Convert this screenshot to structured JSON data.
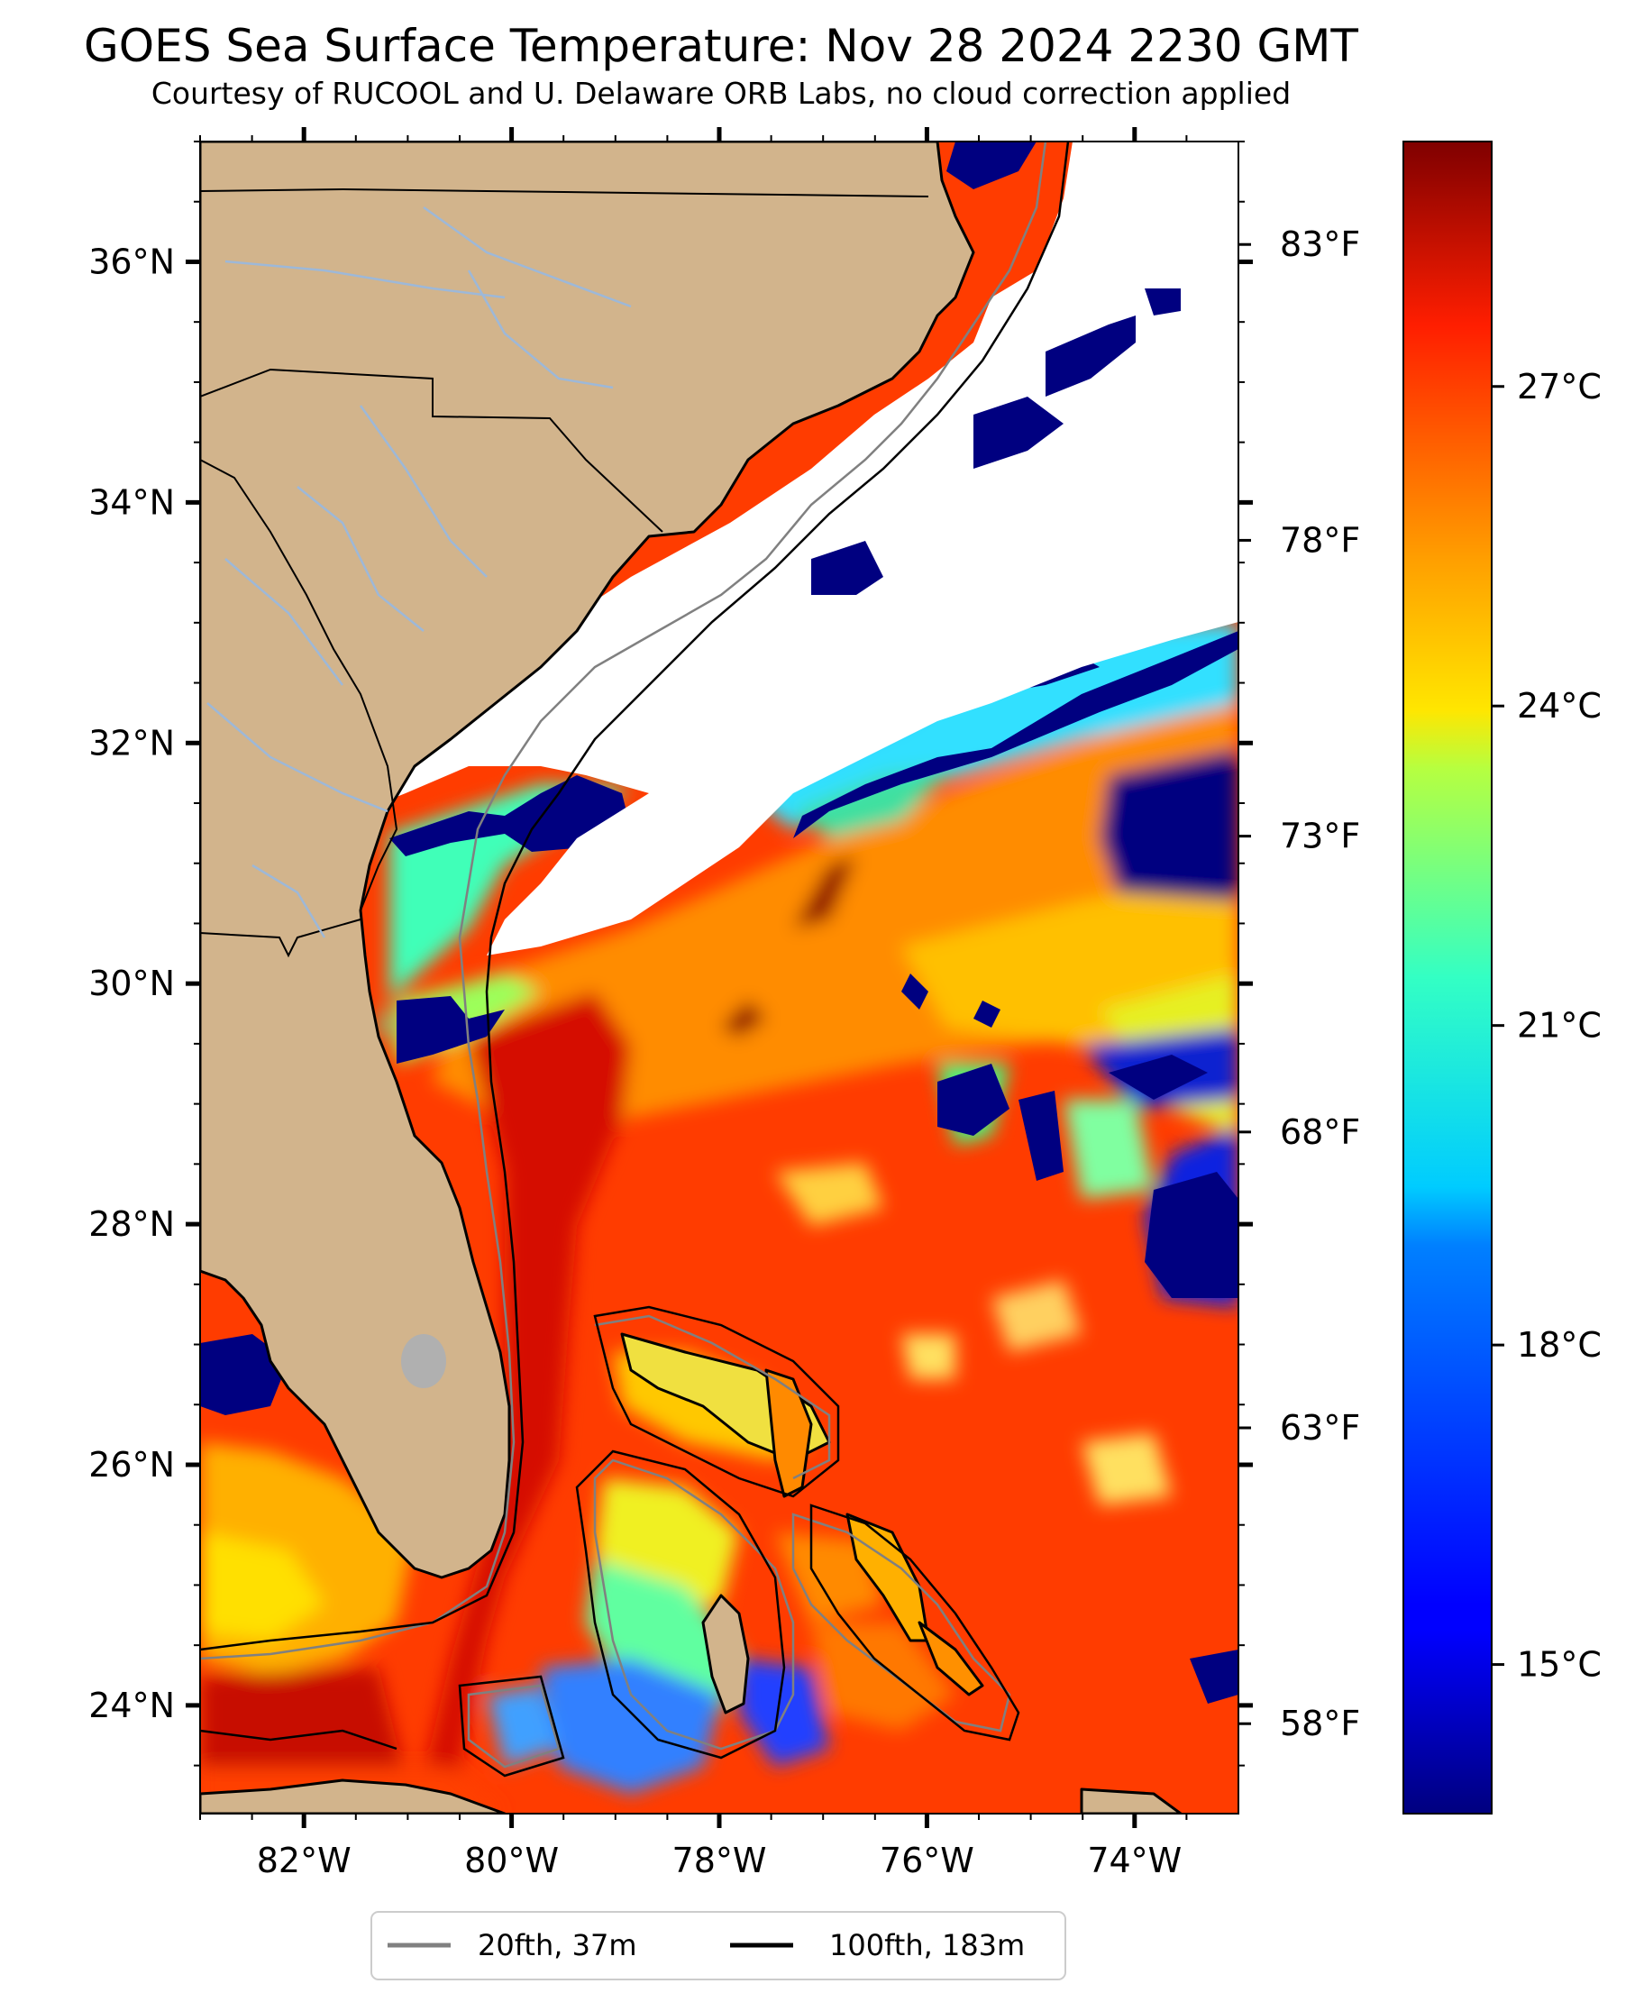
{
  "title": "GOES Sea Surface Temperature: Nov 28 2024 2230 GMT",
  "subtitle": "Courtesy of RUCOOL and U. Delaware ORB Labs, no cloud correction applied",
  "map": {
    "lon_range": [
      -83,
      -73
    ],
    "lat_range": [
      23.1,
      37
    ],
    "lon_ticks": [
      {
        "value": -82,
        "label": "82°W"
      },
      {
        "value": -80,
        "label": "80°W"
      },
      {
        "value": -78,
        "label": "78°W"
      },
      {
        "value": -76,
        "label": "76°W"
      },
      {
        "value": -74,
        "label": "74°W"
      }
    ],
    "lat_ticks": [
      {
        "value": 24,
        "label": "24°N"
      },
      {
        "value": 26,
        "label": "26°N"
      },
      {
        "value": 28,
        "label": "28°N"
      },
      {
        "value": 30,
        "label": "30°N"
      },
      {
        "value": 32,
        "label": "32°N"
      },
      {
        "value": 34,
        "label": "34°N"
      },
      {
        "value": 36,
        "label": "36°N"
      }
    ],
    "colors": {
      "land": "#d2b48c",
      "cloud": "#ffffff",
      "cold_mask": "#000080",
      "rivers": "#9db8d8",
      "isobath_20": "#808080",
      "isobath_100": "#000000"
    }
  },
  "colorbar": {
    "range_c": [
      13.6,
      29.3
    ],
    "celsius_ticks": [
      {
        "value": 15,
        "label": "15°C"
      },
      {
        "value": 18,
        "label": "18°C"
      },
      {
        "value": 21,
        "label": "21°C"
      },
      {
        "value": 24,
        "label": "24°C"
      },
      {
        "value": 27,
        "label": "27°C"
      }
    ],
    "fahrenheit_ticks": [
      {
        "value": 58,
        "label": "58°F"
      },
      {
        "value": 63,
        "label": "63°F"
      },
      {
        "value": 68,
        "label": "68°F"
      },
      {
        "value": 73,
        "label": "73°F"
      },
      {
        "value": 78,
        "label": "78°F"
      },
      {
        "value": 83,
        "label": "83°F"
      }
    ],
    "colormap": "jet"
  },
  "legend": {
    "items": [
      {
        "label": "20fth, 37m",
        "color": "#808080"
      },
      {
        "label": "100fth, 183m",
        "color": "#000000"
      }
    ]
  }
}
